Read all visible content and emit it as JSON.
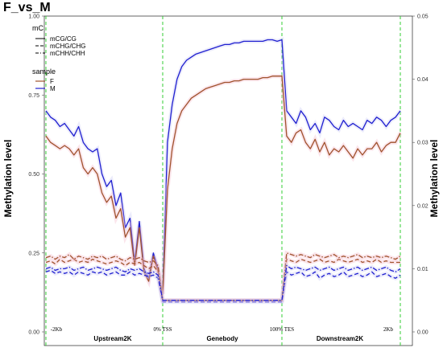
{
  "title": "F_vs_M",
  "chart_data": {
    "type": "line",
    "title": "F_vs_M",
    "ylabel_left": "Methylation level",
    "ylabel_right": "Methylation level",
    "ylim_left": [
      0,
      1.0
    ],
    "ylim_right": [
      0,
      0.05
    ],
    "y_ticks_left": [
      "0.00",
      "0.25",
      "0.50",
      "0.75",
      "1.00"
    ],
    "y_ticks_right": [
      "0.00",
      "0.01",
      "0.02",
      "0.03",
      "0.04",
      "0.05"
    ],
    "x_ticks": [
      "-2Kb",
      "0% TSS",
      "100% TES",
      "2Kb"
    ],
    "regions": [
      "Upstream2K",
      "Genebody",
      "Downstream2K"
    ],
    "legend": {
      "mc_title": "mC",
      "mc_items": [
        {
          "label": "mCG/CG",
          "dash": "solid"
        },
        {
          "label": "mCHG/CHG",
          "dash": "dashed"
        },
        {
          "label": "mCHH/CHH",
          "dash": "dotdash"
        }
      ],
      "sample_title": "sample",
      "sample_items": [
        {
          "label": "F",
          "color": "#A0522D"
        },
        {
          "label": "M",
          "color": "#2020D0"
        }
      ]
    },
    "x": [
      0,
      2,
      4,
      6,
      8,
      10,
      12,
      14,
      16,
      18,
      20,
      22,
      24,
      26,
      28,
      30,
      32,
      34,
      36,
      38,
      40,
      42,
      44,
      46,
      48,
      50,
      52,
      54,
      56,
      58,
      60,
      62,
      64,
      66,
      68,
      70,
      72,
      74,
      76,
      78,
      80,
      82,
      84,
      86,
      88,
      90,
      92,
      94,
      96,
      98,
      100,
      102,
      104,
      106,
      108,
      110,
      112,
      114,
      116,
      118,
      120,
      122,
      124,
      126,
      128,
      130,
      132,
      134,
      136,
      138,
      140,
      142,
      144,
      146,
      148,
      150
    ],
    "series": [
      {
        "name": "M",
        "context": "mCG/CG",
        "color": "#2020D0",
        "dash": "solid",
        "values": [
          0.7,
          0.68,
          0.67,
          0.65,
          0.66,
          0.64,
          0.62,
          0.65,
          0.6,
          0.58,
          0.57,
          0.58,
          0.5,
          0.46,
          0.48,
          0.4,
          0.44,
          0.33,
          0.36,
          0.22,
          0.35,
          0.2,
          0.17,
          0.25,
          0.2,
          0.12,
          0.6,
          0.72,
          0.8,
          0.84,
          0.86,
          0.87,
          0.88,
          0.885,
          0.89,
          0.895,
          0.9,
          0.905,
          0.91,
          0.91,
          0.915,
          0.915,
          0.92,
          0.92,
          0.92,
          0.92,
          0.92,
          0.925,
          0.925,
          0.92,
          0.925,
          0.7,
          0.68,
          0.66,
          0.7,
          0.68,
          0.64,
          0.66,
          0.63,
          0.68,
          0.67,
          0.65,
          0.64,
          0.67,
          0.65,
          0.66,
          0.65,
          0.64,
          0.67,
          0.66,
          0.68,
          0.67,
          0.65,
          0.67,
          0.68,
          0.7
        ]
      },
      {
        "name": "F",
        "context": "mCG/CG",
        "color": "#A0522D",
        "dash": "solid",
        "values": [
          0.62,
          0.6,
          0.59,
          0.58,
          0.59,
          0.58,
          0.56,
          0.58,
          0.52,
          0.5,
          0.52,
          0.5,
          0.44,
          0.41,
          0.43,
          0.36,
          0.39,
          0.3,
          0.33,
          0.21,
          0.33,
          0.19,
          0.16,
          0.24,
          0.19,
          0.12,
          0.45,
          0.58,
          0.66,
          0.7,
          0.72,
          0.74,
          0.75,
          0.76,
          0.77,
          0.775,
          0.78,
          0.785,
          0.79,
          0.79,
          0.795,
          0.795,
          0.8,
          0.8,
          0.8,
          0.8,
          0.805,
          0.805,
          0.81,
          0.81,
          0.81,
          0.62,
          0.6,
          0.63,
          0.64,
          0.6,
          0.58,
          0.61,
          0.57,
          0.6,
          0.56,
          0.58,
          0.57,
          0.59,
          0.57,
          0.55,
          0.58,
          0.56,
          0.58,
          0.58,
          0.6,
          0.57,
          0.59,
          0.6,
          0.6,
          0.63
        ]
      },
      {
        "name": "F",
        "context": "mCHG/CHG",
        "color": "#A0522D",
        "dash": "dashed",
        "values": [
          0.22,
          0.225,
          0.215,
          0.23,
          0.22,
          0.225,
          0.23,
          0.22,
          0.225,
          0.22,
          0.23,
          0.225,
          0.22,
          0.215,
          0.22,
          0.225,
          0.22,
          0.21,
          0.22,
          0.215,
          0.22,
          0.21,
          0.2,
          0.21,
          0.19,
          0.1,
          0.1,
          0.1,
          0.1,
          0.1,
          0.1,
          0.1,
          0.1,
          0.1,
          0.1,
          0.1,
          0.1,
          0.1,
          0.1,
          0.1,
          0.1,
          0.1,
          0.1,
          0.1,
          0.1,
          0.1,
          0.1,
          0.1,
          0.1,
          0.1,
          0.1,
          0.23,
          0.225,
          0.22,
          0.23,
          0.225,
          0.22,
          0.225,
          0.23,
          0.22,
          0.225,
          0.22,
          0.23,
          0.225,
          0.22,
          0.225,
          0.23,
          0.22,
          0.225,
          0.22,
          0.23,
          0.22,
          0.225,
          0.22,
          0.22,
          0.22
        ]
      },
      {
        "name": "M",
        "context": "mCHG/CHG",
        "color": "#2020D0",
        "dash": "dashed",
        "values": [
          0.19,
          0.195,
          0.185,
          0.19,
          0.185,
          0.19,
          0.18,
          0.19,
          0.185,
          0.18,
          0.19,
          0.185,
          0.19,
          0.18,
          0.185,
          0.19,
          0.18,
          0.18,
          0.19,
          0.18,
          0.185,
          0.18,
          0.175,
          0.18,
          0.17,
          0.095,
          0.095,
          0.095,
          0.095,
          0.095,
          0.095,
          0.095,
          0.095,
          0.095,
          0.095,
          0.095,
          0.095,
          0.095,
          0.095,
          0.095,
          0.095,
          0.095,
          0.095,
          0.095,
          0.095,
          0.095,
          0.095,
          0.095,
          0.095,
          0.095,
          0.095,
          0.19,
          0.18,
          0.185,
          0.19,
          0.175,
          0.18,
          0.19,
          0.17,
          0.18,
          0.185,
          0.175,
          0.18,
          0.19,
          0.175,
          0.18,
          0.185,
          0.175,
          0.18,
          0.19,
          0.175,
          0.18,
          0.185,
          0.175,
          0.17,
          0.18
        ]
      },
      {
        "name": "F",
        "context": "mCHH/CHH",
        "color": "#A0522D",
        "dash": "dotdash",
        "values": [
          0.235,
          0.24,
          0.23,
          0.24,
          0.235,
          0.245,
          0.23,
          0.24,
          0.235,
          0.23,
          0.24,
          0.235,
          0.24,
          0.23,
          0.235,
          0.24,
          0.23,
          0.225,
          0.235,
          0.23,
          0.235,
          0.225,
          0.22,
          0.225,
          0.21,
          0.1,
          0.1,
          0.1,
          0.1,
          0.1,
          0.1,
          0.1,
          0.1,
          0.1,
          0.1,
          0.1,
          0.1,
          0.1,
          0.1,
          0.1,
          0.1,
          0.1,
          0.1,
          0.1,
          0.1,
          0.1,
          0.1,
          0.1,
          0.1,
          0.1,
          0.1,
          0.25,
          0.245,
          0.24,
          0.245,
          0.24,
          0.235,
          0.245,
          0.24,
          0.235,
          0.24,
          0.245,
          0.235,
          0.24,
          0.235,
          0.24,
          0.245,
          0.235,
          0.24,
          0.235,
          0.24,
          0.235,
          0.24,
          0.235,
          0.23,
          0.24
        ]
      },
      {
        "name": "M",
        "context": "mCHH/CHH",
        "color": "#2020D0",
        "dash": "dotdash",
        "values": [
          0.2,
          0.205,
          0.195,
          0.2,
          0.2,
          0.205,
          0.195,
          0.2,
          0.205,
          0.195,
          0.2,
          0.205,
          0.2,
          0.195,
          0.2,
          0.205,
          0.195,
          0.19,
          0.2,
          0.195,
          0.2,
          0.19,
          0.185,
          0.19,
          0.18,
          0.1,
          0.1,
          0.1,
          0.1,
          0.1,
          0.1,
          0.1,
          0.1,
          0.1,
          0.1,
          0.1,
          0.1,
          0.1,
          0.1,
          0.1,
          0.1,
          0.1,
          0.1,
          0.1,
          0.1,
          0.1,
          0.1,
          0.1,
          0.1,
          0.1,
          0.1,
          0.21,
          0.2,
          0.205,
          0.2,
          0.195,
          0.2,
          0.205,
          0.195,
          0.2,
          0.205,
          0.195,
          0.2,
          0.205,
          0.195,
          0.2,
          0.205,
          0.195,
          0.2,
          0.205,
          0.195,
          0.2,
          0.205,
          0.195,
          0.19,
          0.2
        ]
      }
    ],
    "grid": false,
    "legend_placement": "top-left"
  }
}
